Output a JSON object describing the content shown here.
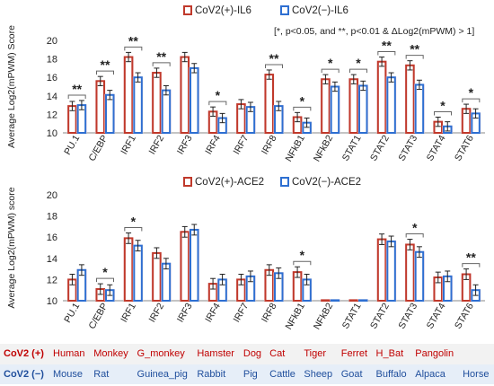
{
  "chart_data": [
    {
      "type": "bar",
      "ylabel": "Average Log2(mPWM) Score",
      "ylim": [
        10,
        20
      ],
      "yticks": [
        10,
        12,
        14,
        16,
        18,
        20
      ],
      "note": "[*, p<0.05, and **, p<0.01 & ΔLog2(mPWM) > 1]",
      "categories": [
        "PU.1",
        "C/EBP",
        "IRF1",
        "IRF2",
        "IRF3",
        "IRF4",
        "IRF7",
        "IRF8",
        "NFkB1",
        "NFkB2",
        "STAT1",
        "STAT2",
        "STAT3",
        "STAT4",
        "STAT6"
      ],
      "series": [
        {
          "name": "CoV2(+)-IL6",
          "color": "#c0392b",
          "values": [
            12.9,
            15.6,
            18.2,
            16.5,
            18.2,
            12.3,
            13.1,
            16.3,
            11.7,
            15.8,
            15.8,
            17.7,
            17.3,
            11.2,
            12.6
          ],
          "errors": [
            0.5,
            0.5,
            0.5,
            0.5,
            0.5,
            0.5,
            0.5,
            0.5,
            0.5,
            0.5,
            0.5,
            0.5,
            0.5,
            0.5,
            0.5
          ]
        },
        {
          "name": "CoV2(−)-IL6",
          "color": "#2e6fd1",
          "values": [
            13.0,
            14.1,
            16.0,
            14.6,
            17.0,
            11.6,
            12.8,
            12.9,
            11.1,
            15.0,
            15.1,
            16.0,
            15.2,
            10.7,
            12.1
          ],
          "errors": [
            0.5,
            0.5,
            0.5,
            0.5,
            0.5,
            0.5,
            0.5,
            0.5,
            0.5,
            0.5,
            0.5,
            0.5,
            0.5,
            0.5,
            0.5
          ]
        }
      ],
      "significance": [
        "**",
        "**",
        "**",
        "**",
        "",
        "*",
        "",
        "**",
        "*",
        "*",
        "*",
        "**",
        "**",
        "*",
        "*"
      ]
    },
    {
      "type": "bar",
      "ylabel": "Average Log2(mPWM) score",
      "ylim": [
        10,
        20
      ],
      "yticks": [
        10,
        12,
        14,
        16,
        18,
        20
      ],
      "categories": [
        "PU.1",
        "C/EBP",
        "IRF1",
        "IRF2",
        "IRF3",
        "IRF4",
        "IRF7",
        "IRF8",
        "NFkB1",
        "NFkB2",
        "STAT1",
        "STAT2",
        "STAT3",
        "STAT4",
        "STAT6"
      ],
      "series": [
        {
          "name": "CoV2(+)-ACE2",
          "color": "#c0392b",
          "values": [
            12.0,
            11.1,
            15.9,
            14.5,
            16.5,
            11.6,
            12.0,
            12.9,
            12.7,
            10.05,
            10.05,
            15.8,
            15.3,
            12.2,
            12.5
          ],
          "errors": [
            0.5,
            0.5,
            0.5,
            0.5,
            0.5,
            0.5,
            0.5,
            0.5,
            0.5,
            0,
            0,
            0.5,
            0.5,
            0.5,
            0.5
          ]
        },
        {
          "name": "CoV2(−)-ACE2",
          "color": "#2e6fd1",
          "values": [
            12.9,
            11.0,
            15.2,
            13.5,
            16.7,
            12.0,
            12.3,
            12.6,
            12.0,
            10.05,
            10.05,
            15.6,
            14.6,
            12.3,
            11.0
          ],
          "errors": [
            0.5,
            0.5,
            0.5,
            0.5,
            0.5,
            0.5,
            0.5,
            0.5,
            0.5,
            0,
            0,
            0.5,
            0.5,
            0.5,
            0.5
          ]
        }
      ],
      "significance": [
        "",
        "*",
        "*",
        "",
        "",
        "",
        "",
        "",
        "*",
        "",
        "",
        "",
        "*",
        "",
        "**"
      ]
    }
  ],
  "species": {
    "pos_label": "CoV2 (+)",
    "neg_label": "CoV2 (−)",
    "pos": [
      "Human",
      "Monkey",
      "G_monkey",
      "Hamster",
      "Dog",
      "Cat",
      "Tiger",
      "Ferret",
      "H_Bat",
      "Pangolin",
      ""
    ],
    "neg": [
      "Mouse",
      "Rat",
      "Guinea_pig",
      "Rabbit",
      "Pig",
      "Cattle",
      "Sheep",
      "Goat",
      "Buffalo",
      "Alpaca",
      "Horse"
    ]
  }
}
